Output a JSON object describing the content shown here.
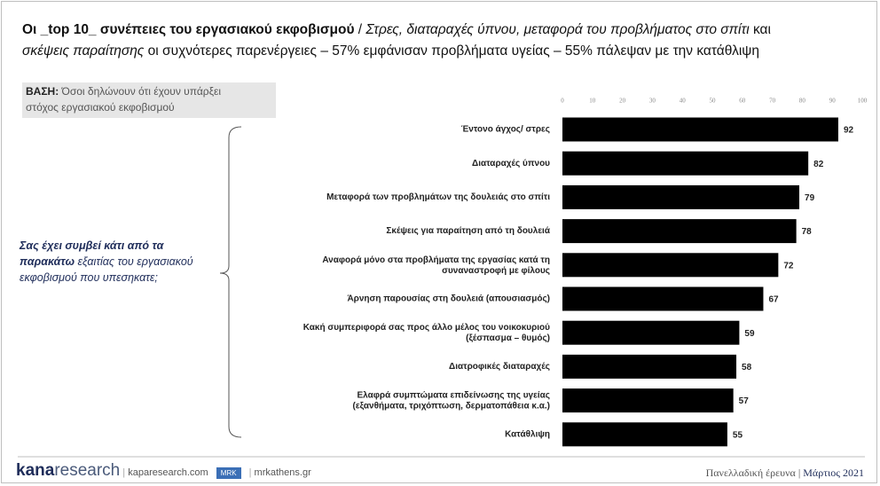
{
  "chart_data": {
    "type": "bar",
    "orientation": "horizontal",
    "title": [
      [
        "Οι _top 10_ συνέπειες του εργασιακού εκφοβισμού",
        " / ",
        "Στρες, διαταραχές ύπνου, μεταφορά του προβλήματος στο σπίτι",
        " και"
      ],
      [
        "σκέψεις παραίτησης",
        " οι συχνότερες παρενέργειες – 57% εμφάνισαν προβλήματα υγείας – 55% πάλεψαν με την κατάθλιψη"
      ]
    ],
    "categories": [
      "Έντονο άγχος/ στρες",
      "Διαταραχές ύπνου",
      "Μεταφορά των προβλημάτων της δουλειάς στο σπίτι",
      "Σκέψεις για παραίτηση από τη δουλειά",
      "Αναφορά μόνο στα προβλήματα της εργασίας κατά τη\nσυναναστροφή με φίλους",
      "Άρνηση παρουσίας στη δουλειά (απουσιασμός)",
      "Κακή συμπεριφορά σας προς άλλο μέλος του νοικοκυριού\n(ξέσπασμα – θυμός)",
      "Διατροφικές διαταραχές",
      "Ελαφρά συμπτώματα επιδείνωσης της υγείας\n(εξανθήματα, τριχόπτωση, δερματοπάθεια κ.α.)",
      "Κατάθλιψη"
    ],
    "values": [
      92,
      82,
      79,
      78,
      72,
      67,
      59,
      58,
      57,
      55
    ],
    "color": "#000000",
    "xlim": [
      0,
      100
    ],
    "xticks": [
      0,
      10,
      20,
      30,
      40,
      50,
      60,
      70,
      80,
      90,
      100
    ],
    "grid": false
  },
  "base": {
    "label": "ΒΑΣΗ:",
    "lines": [
      "Όσοι δηλώνουν ότι έχουν υπάρξει",
      "στόχος εργασιακού εκφοβισμού"
    ]
  },
  "question": [
    "Σας έχει συμβεί κάτι από τα",
    "παρακάτω",
    " εξαιτίας του εργασιακού",
    "εκφοβισμού που υπεσηκατε;"
  ],
  "footer": {
    "logo": [
      "kana",
      "research"
    ],
    "site1": "kaparesearch.com",
    "badge": "MRK",
    "site2": "mrkathens.gr",
    "survey": "Πανελλαδική έρευνα",
    "date": "Μάρτιος 2021"
  }
}
